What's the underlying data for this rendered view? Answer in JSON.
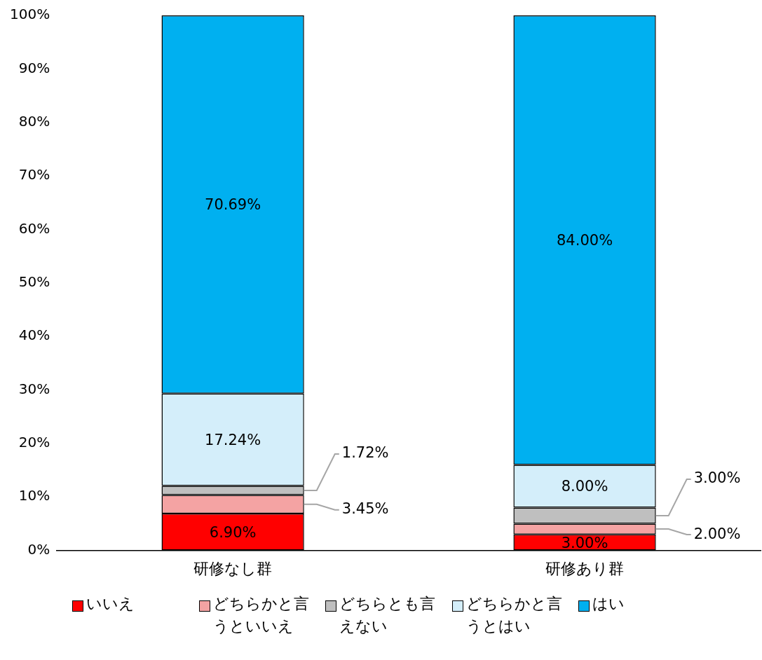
{
  "chart_data": {
    "type": "bar",
    "stacked": true,
    "categories": [
      "研修なし群",
      "研修あり群"
    ],
    "series": [
      {
        "name": "いいえ",
        "color": "#ff0000",
        "values": [
          6.9,
          3.0
        ],
        "value_labels": [
          "6.90%",
          "3.00%"
        ]
      },
      {
        "name": "どちらかと言うといいえ",
        "color": "#f4a3a3",
        "values": [
          3.45,
          2.0
        ],
        "value_labels": [
          "3.45%",
          "2.00%"
        ]
      },
      {
        "name": "どちらとも言えない",
        "color": "#bfbfbf",
        "values": [
          1.72,
          3.0
        ],
        "value_labels": [
          "1.72%",
          "3.00%"
        ]
      },
      {
        "name": "どちらかと言うとはい",
        "color": "#d4eefa",
        "values": [
          17.24,
          8.0
        ],
        "value_labels": [
          "17.24%",
          "8.00%"
        ]
      },
      {
        "name": "はい",
        "color": "#00b0f0",
        "values": [
          70.69,
          84.0
        ],
        "value_labels": [
          "70.69%",
          "84.00%"
        ]
      }
    ],
    "ylim": [
      0,
      100
    ],
    "yticks": [
      {
        "value": 0,
        "label": "0%"
      },
      {
        "value": 10,
        "label": "10%"
      },
      {
        "value": 20,
        "label": "20%"
      },
      {
        "value": 30,
        "label": "30%"
      },
      {
        "value": 40,
        "label": "40%"
      },
      {
        "value": 50,
        "label": "50%"
      },
      {
        "value": 60,
        "label": "60%"
      },
      {
        "value": 70,
        "label": "70%"
      },
      {
        "value": 80,
        "label": "80%"
      },
      {
        "value": 90,
        "label": "90%"
      },
      {
        "value": 100,
        "label": "100%"
      }
    ],
    "grid": false,
    "legend": "bottom"
  }
}
